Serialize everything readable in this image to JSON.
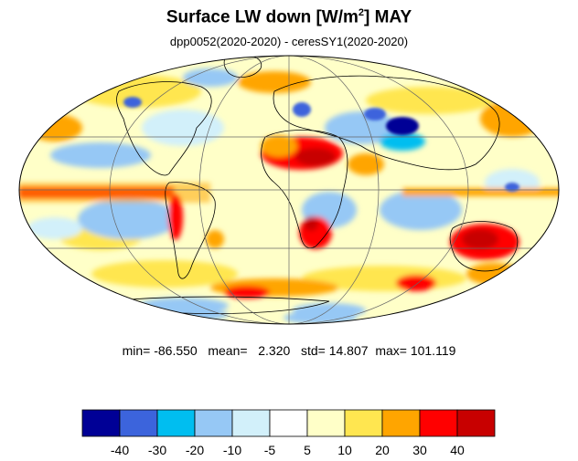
{
  "header": {
    "title_main": "Surface LW down [W/m",
    "title_sup": "2",
    "title_end": "]  MAY",
    "subtitle": "dpp0052(2020-2020) - ceresSY1(2020-2020)"
  },
  "stats": {
    "min_label": "min=",
    "min_value": "-86.550",
    "mean_label": "mean=",
    "mean_value": "2.320",
    "std_label": "std=",
    "std_value": "14.807",
    "max_label": "max=",
    "max_value": "101.119"
  },
  "colorbar": {
    "colors": [
      "#000096",
      "#3c64dc",
      "#00bef0",
      "#96c8f5",
      "#d2f0fa",
      "#ffffff",
      "#ffffc8",
      "#ffe650",
      "#ffa500",
      "#ff0000",
      "#c80000"
    ],
    "tick_labels": [
      "-40",
      "-30",
      "-20",
      "-10",
      "-5",
      "5",
      "10",
      "20",
      "30",
      "40"
    ]
  },
  "map": {
    "projection": "mollweide",
    "background_color": "#ffffc8",
    "anomalies": [
      {
        "region": "equatorial-pacific-band",
        "level": 40
      },
      {
        "region": "sahara",
        "level": 40
      },
      {
        "region": "australia",
        "level": 40
      },
      {
        "region": "southern-africa",
        "level": 30
      },
      {
        "region": "andes",
        "level": 40
      },
      {
        "region": "siberia",
        "level": -40
      },
      {
        "region": "southern-ocean",
        "level": 30
      },
      {
        "region": "north-pacific",
        "level": -10
      },
      {
        "region": "south-pacific",
        "level": -10
      },
      {
        "region": "antarctica",
        "level": -20
      }
    ]
  }
}
